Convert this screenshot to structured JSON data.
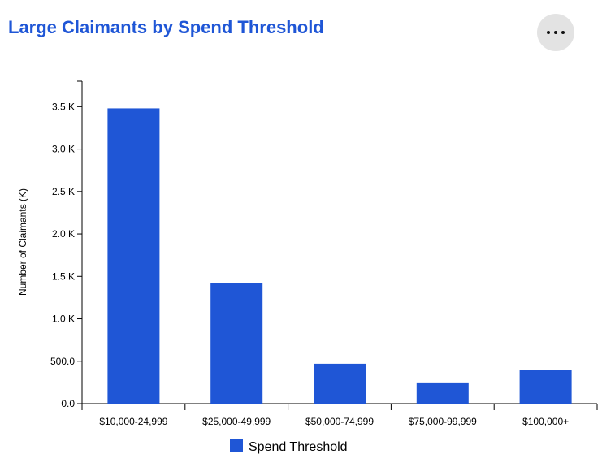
{
  "header": {
    "title": "Large Claimants by Spend Threshold",
    "menu_icon": "more-horizontal-icon"
  },
  "colors": {
    "title": "#1f56d6",
    "bar": "#1f56d6",
    "menu_bg": "#e3e3e3"
  },
  "chart_data": {
    "type": "bar",
    "title": "Large Claimants by Spend Threshold",
    "xlabel": "",
    "ylabel": "Number of Claimants (K)",
    "categories": [
      "$10,000-24,999",
      "$25,000-49,999",
      "$50,000-74,999",
      "$75,000-99,999",
      "$100,000+"
    ],
    "series": [
      {
        "name": "Spend Threshold",
        "values": [
          3480,
          1420,
          470,
          250,
          395
        ]
      }
    ],
    "ylim": [
      0,
      3800
    ],
    "yticks": [
      0,
      500,
      1000,
      1500,
      2000,
      2500,
      3000,
      3500
    ],
    "ytick_labels": [
      "0.0",
      "500.0",
      "1.0 K",
      "1.5 K",
      "2.0 K",
      "2.5 K",
      "3.0 K",
      "3.5 K"
    ],
    "legend": [
      "Spend Threshold"
    ],
    "legend_position": "bottom-center",
    "grid": false
  }
}
